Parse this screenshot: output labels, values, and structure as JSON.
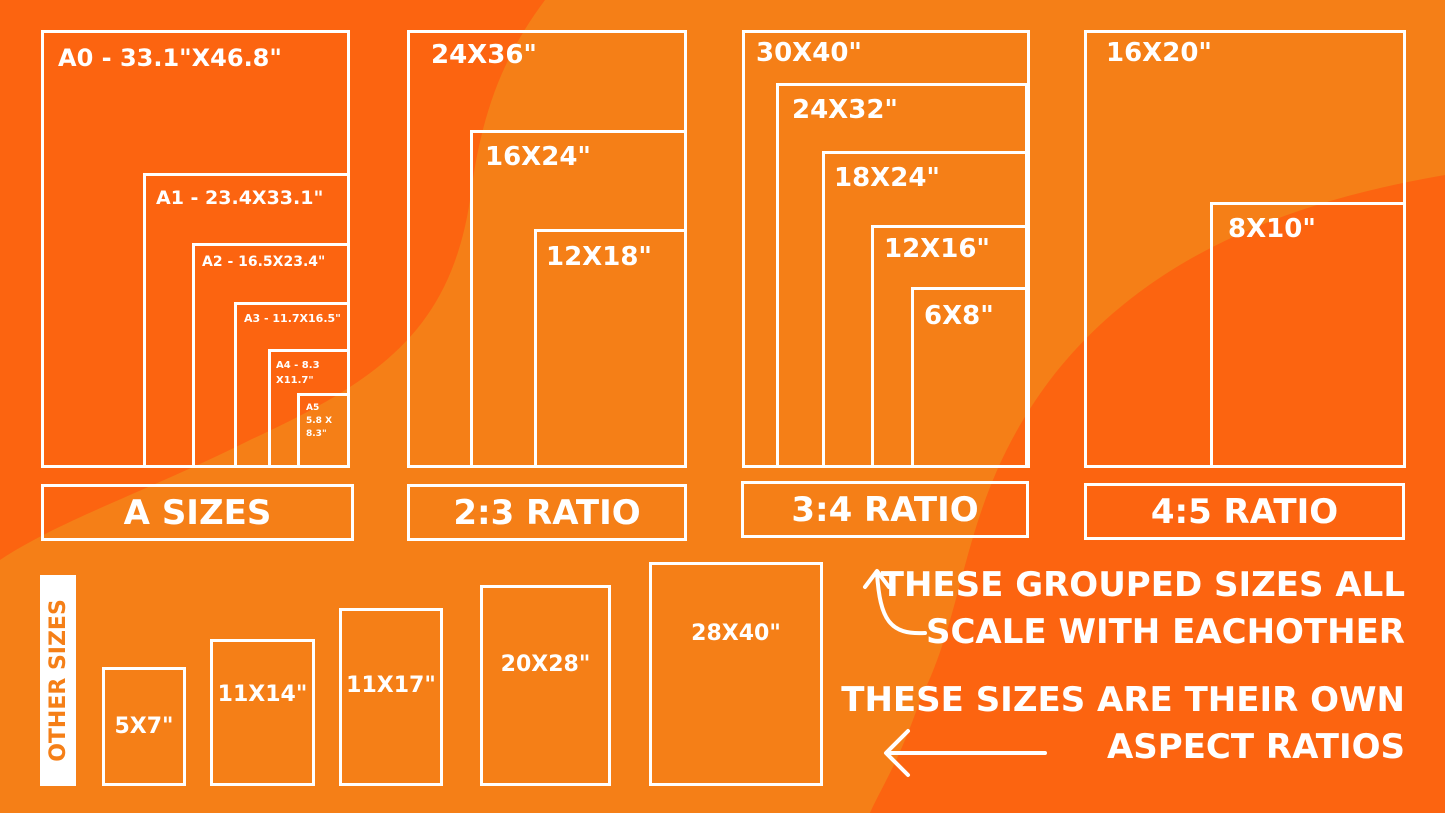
{
  "colors": {
    "dark_orange": "#fc6410",
    "light_orange": "#f57f17",
    "white": "#ffffff"
  },
  "a_sizes": {
    "caption": "A SIZES",
    "items": [
      "A0 - 33.1\"X46.8\"",
      "A1 - 23.4X33.1\"",
      "A2 - 16.5X23.4\"",
      "A3 - 11.7X16.5\"",
      "A4 - 8.3 X11.7\"",
      "A5 5.8 X 8.3\""
    ]
  },
  "ratio_2_3": {
    "caption": "2:3 RATIO",
    "items": [
      "24X36\"",
      "16X24\"",
      "12X18\""
    ]
  },
  "ratio_3_4": {
    "caption": "3:4 RATIO",
    "items": [
      "30X40\"",
      "24X32\"",
      "18X24\"",
      "12X16\"",
      "6X8\""
    ]
  },
  "ratio_4_5": {
    "caption": "4:5 RATIO",
    "items": [
      "16X20\"",
      "8X10\""
    ]
  },
  "other": {
    "caption": "OTHER SIZES",
    "items": [
      "5X7\"",
      "11X14\"",
      "11X17\"",
      "20X28\"",
      "28X40\""
    ]
  },
  "notes": {
    "grouped_1": "THESE GROUPED SIZES ALL",
    "grouped_2": "SCALE WITH EACHOTHER",
    "own_1": "THESE SIZES ARE THEIR OWN",
    "own_2": "ASPECT RATIOS"
  },
  "icons": {
    "up_arrow": "curved-arrow-up-icon",
    "left_arrow": "arrow-left-icon"
  }
}
